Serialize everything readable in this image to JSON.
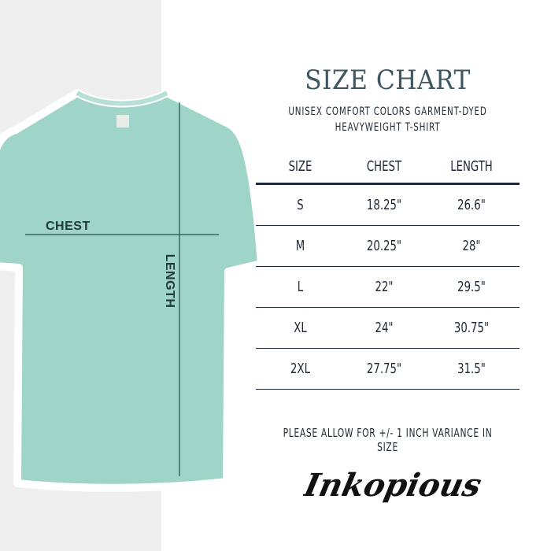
{
  "title": "SIZE CHART",
  "subtitle_line1": "UNISEX COMFORT COLORS GARMENT-DYED",
  "subtitle_line2": "HEAVYWEIGHT T-SHIRT",
  "shirt": {
    "color": "#9fd4c8",
    "chest_label": "CHEST",
    "length_label": "LENGTH"
  },
  "table": {
    "headers": [
      "SIZE",
      "CHEST",
      "LENGTH"
    ],
    "rows": [
      [
        "S",
        "18.25\"",
        "26.6\""
      ],
      [
        "M",
        "20.25\"",
        "28\""
      ],
      [
        "L",
        "22\"",
        "29.5\""
      ],
      [
        "XL",
        "24\"",
        "30.75\""
      ],
      [
        "2XL",
        "27.75\"",
        "31.5\""
      ]
    ]
  },
  "note": "PLEASE ALLOW FOR +/- 1 INCH VARIANCE IN SIZE",
  "logo": "Inkopious"
}
